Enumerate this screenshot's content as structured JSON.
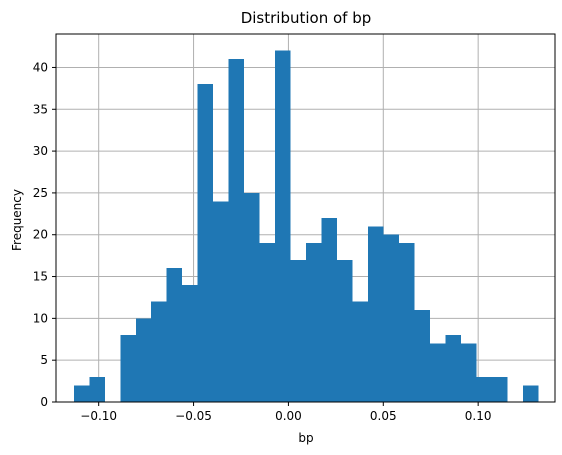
{
  "chart_data": {
    "type": "bar",
    "title": "Distribution of bp",
    "xlabel": "bp",
    "ylabel": "Frequency",
    "xlim": [
      -0.1225,
      0.1405
    ],
    "ylim": [
      0,
      44
    ],
    "grid": true,
    "bar_color": "#1f77b4",
    "x_ticks": [
      -0.1,
      -0.05,
      0.0,
      0.05,
      0.1
    ],
    "x_tick_labels": [
      "−0.10",
      "−0.05",
      "0.00",
      "0.05",
      "0.10"
    ],
    "y_ticks": [
      0,
      5,
      10,
      15,
      20,
      25,
      30,
      35,
      40
    ],
    "y_tick_labels": [
      "0",
      "5",
      "10",
      "15",
      "20",
      "25",
      "30",
      "35",
      "40"
    ],
    "bin_start": -0.1131,
    "bin_width": 0.00816,
    "counts": [
      2,
      3,
      0,
      8,
      10,
      12,
      16,
      14,
      38,
      24,
      41,
      25,
      19,
      42,
      17,
      19,
      22,
      17,
      12,
      21,
      20,
      19,
      11,
      7,
      8,
      7,
      3,
      3,
      0,
      2
    ]
  }
}
